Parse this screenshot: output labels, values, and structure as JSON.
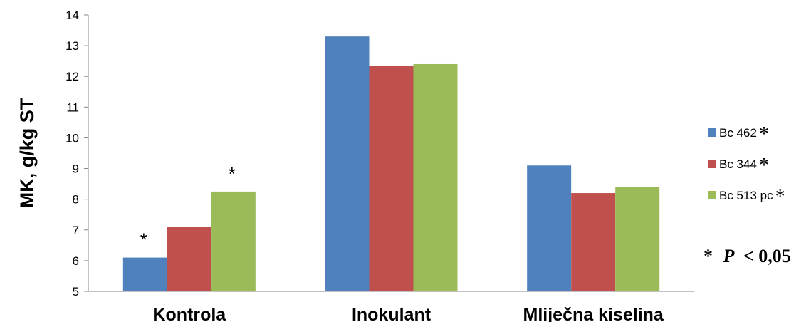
{
  "chart_data": {
    "type": "bar",
    "ylabel": "MK, g/kg ST",
    "ylim": [
      5,
      14
    ],
    "yticks": [
      "5",
      "6",
      "7",
      "8",
      "9",
      "10",
      "11",
      "12",
      "13",
      "14"
    ],
    "categories": [
      "Kontrola",
      "Inokulant",
      "Mliječna kiselina"
    ],
    "series": [
      {
        "name": "Bc 462",
        "legend_mark": "*",
        "color": "#4F81BD",
        "values": [
          6.1,
          13.3,
          9.1
        ]
      },
      {
        "name": "Bc 344",
        "legend_mark": "*",
        "color": "#C0504D",
        "values": [
          7.1,
          12.35,
          8.2
        ]
      },
      {
        "name": "Bc 513 pc",
        "legend_mark": "*",
        "color": "#9BBB59",
        "values": [
          8.25,
          12.4,
          8.4
        ]
      }
    ],
    "annotations": [
      {
        "category": 0,
        "series": 0,
        "text": "*"
      },
      {
        "category": 0,
        "series": 2,
        "text": "*"
      }
    ],
    "legend_position": "right",
    "grid": false
  },
  "note": {
    "star": "*",
    "p": "P",
    "rest": "< 0,05"
  }
}
